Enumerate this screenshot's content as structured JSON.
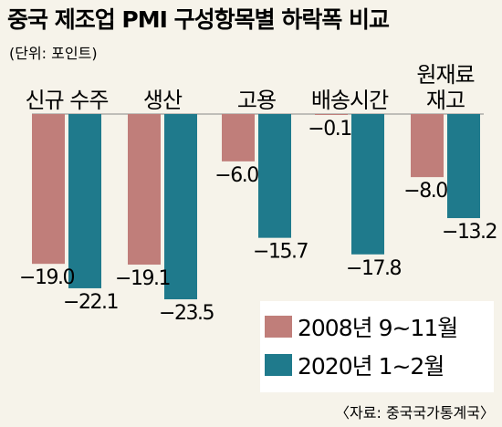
{
  "chart_data": {
    "type": "bar",
    "title": "중국 제조업 PMI 구성항목별 하락폭 비교",
    "unit_label": "(단위: 포인트)",
    "categories": [
      [
        "신규 수주"
      ],
      [
        "생산"
      ],
      [
        "고용"
      ],
      [
        "배송시간"
      ],
      [
        "원재료",
        "재고"
      ]
    ],
    "series": [
      {
        "name": "2008년 9~11월",
        "color": "#c07e7a",
        "values": [
          -19.0,
          -19.1,
          -6.0,
          -0.1,
          -8.0
        ],
        "labels": [
          "−19.0",
          "−19.1",
          "−6.0",
          "−0.1",
          "−8.0"
        ]
      },
      {
        "name": "2020년 1~2월",
        "color": "#1f7a8c",
        "values": [
          -22.1,
          -23.5,
          -15.7,
          -17.8,
          -13.2
        ],
        "labels": [
          "−22.1",
          "−23.5",
          "−15.7",
          "−17.8",
          "−13.2"
        ]
      }
    ],
    "ylim": [
      -23.5,
      0
    ],
    "grid": false,
    "legend_position": "bottom-right",
    "source": "〈자료: 중국국가통계국〉"
  }
}
